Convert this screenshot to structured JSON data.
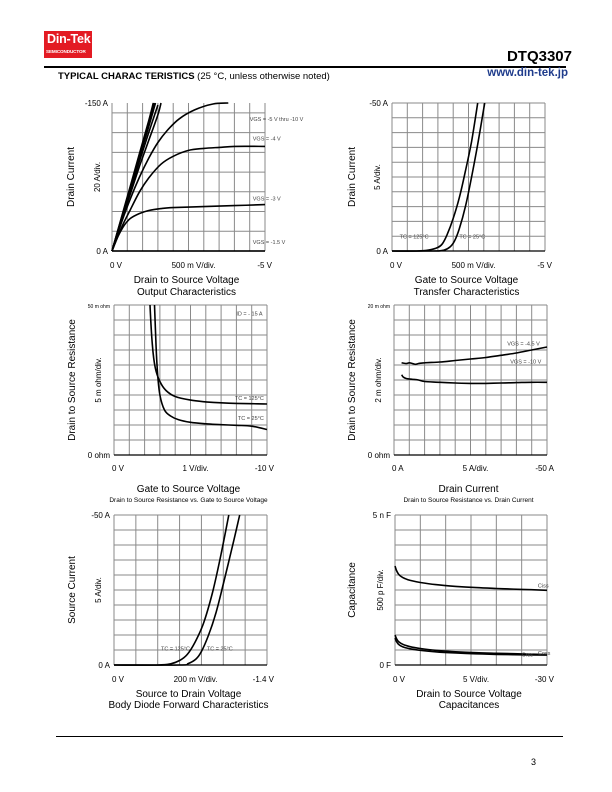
{
  "header": {
    "logo_brand": "Din-Tek",
    "logo_sub": "SEMICONDUCTOR",
    "part_number": "DTQ3307",
    "url": "www.din-tek.jp",
    "section_title": "TYPICAL CHARAC TERISTICS",
    "section_note": "(25 °C, unless otherwise noted)",
    "colors": {
      "logo_bg": "#e31b23",
      "url": "#1f3c8c"
    }
  },
  "footer": {
    "page_number": "3"
  },
  "chart_data": [
    {
      "id": "output",
      "type": "line",
      "title": "Output Characteristics",
      "xlabel": "Drain to Source Voltage",
      "ylabel": "Drain Current",
      "xscale_label": "500 m V/div.",
      "yscale_label": "20 A/div.",
      "x_start_label": "0 V",
      "x_end_label": "-5 V",
      "y_top_label": "-150 A",
      "y_bottom_label": "0 A",
      "xlim": [
        0,
        -5
      ],
      "ylim": [
        0,
        -150
      ],
      "x_divisions": 10,
      "y_divisions": 7.5,
      "grid": true,
      "annotations": [
        {
          "text": "VGS = -5 V thru -10 V",
          "x": -4.5,
          "y": -132
        },
        {
          "text": "VGS = -4 V",
          "x": -4.6,
          "y": -112
        },
        {
          "text": "VGS = -3 V",
          "x": -4.6,
          "y": -51
        },
        {
          "text": "VGS = -1.5 V",
          "x": -4.6,
          "y": -7
        }
      ],
      "series": [
        {
          "name": "VGS = -10 V",
          "x": [
            0,
            -0.3,
            -0.6,
            -0.9,
            -1.2,
            -1.35
          ],
          "y": [
            0,
            -33,
            -66,
            -99,
            -132,
            -150
          ]
        },
        {
          "name": "VGS = -8 V",
          "x": [
            0,
            -0.3,
            -0.6,
            -0.9,
            -1.2,
            -1.38
          ],
          "y": [
            0,
            -32,
            -64,
            -97,
            -130,
            -150
          ]
        },
        {
          "name": "VGS = -7 V",
          "x": [
            0,
            -0.3,
            -0.6,
            -0.9,
            -1.2,
            -1.42
          ],
          "y": [
            0,
            -32,
            -63,
            -95,
            -126,
            -150
          ]
        },
        {
          "name": "VGS = -6 V",
          "x": [
            0,
            -0.3,
            -0.6,
            -0.9,
            -1.2,
            -1.5
          ],
          "y": [
            0,
            -31,
            -61,
            -91,
            -120,
            -148
          ]
        },
        {
          "name": "VGS = -5.5 V",
          "x": [
            0,
            -0.3,
            -0.6,
            -0.9,
            -1.2,
            -1.5,
            -1.6
          ],
          "y": [
            0,
            -30,
            -58,
            -86,
            -112,
            -138,
            -150
          ]
        },
        {
          "name": "VGS = -5 V",
          "x": [
            0,
            -0.3,
            -0.6,
            -0.9,
            -1.2,
            -1.5,
            -1.8,
            -2.2,
            -2.7,
            -3.3,
            -3.8
          ],
          "y": [
            0,
            -28,
            -53,
            -75,
            -94,
            -110,
            -122,
            -134,
            -143,
            -149,
            -150
          ]
        },
        {
          "name": "VGS = -4 V",
          "x": [
            0,
            -0.3,
            -0.6,
            -0.9,
            -1.2,
            -1.6,
            -2.0,
            -2.5,
            -3.0,
            -3.5,
            -4.0,
            -5.0
          ],
          "y": [
            0,
            -23,
            -42,
            -60,
            -74,
            -88,
            -96,
            -102,
            -104,
            -105,
            -106,
            -106
          ]
        },
        {
          "name": "VGS = -3 V",
          "x": [
            0,
            -0.2,
            -0.4,
            -0.6,
            -0.9,
            -1.2,
            -1.6,
            -2.0,
            -3.0,
            -4.0,
            -5.0
          ],
          "y": [
            0,
            -15,
            -26,
            -33,
            -38,
            -41,
            -43,
            -44,
            -45,
            -46,
            -47
          ]
        },
        {
          "name": "VGS = -1.5 V",
          "x": [
            0,
            -5.0
          ],
          "y": [
            0,
            0
          ]
        }
      ]
    },
    {
      "id": "transfer",
      "type": "line",
      "title": "Transfer Characteristics",
      "xlabel": "Gate to Source Voltage",
      "ylabel": "Drain Current",
      "xscale_label": "500 m V/div.",
      "yscale_label": "5 A/div.",
      "x_start_label": "0 V",
      "x_end_label": "-5 V",
      "y_top_label": "-50 A",
      "y_bottom_label": "0 A",
      "xlim": [
        0,
        -5
      ],
      "ylim": [
        0,
        -50
      ],
      "x_divisions": 10,
      "y_divisions": 10,
      "grid": true,
      "annotations": [
        {
          "text": "TC = 125°C",
          "x": -0.25,
          "y": -4.2
        },
        {
          "text": "TC = 25°C",
          "x": -2.2,
          "y": -4.2
        }
      ],
      "series": [
        {
          "name": "TC = 125°C",
          "x": [
            0,
            -0.8,
            -1.2,
            -1.5,
            -1.65,
            -1.8,
            -2.0,
            -2.2,
            -2.4,
            -2.6,
            -2.8
          ],
          "y": [
            0,
            0,
            -0.3,
            -1.2,
            -2.5,
            -5.5,
            -11,
            -18,
            -27,
            -37,
            -50
          ]
        },
        {
          "name": "TC = 25°C",
          "x": [
            0,
            -1.3,
            -1.7,
            -1.9,
            -2.05,
            -2.2,
            -2.4,
            -2.6,
            -2.8,
            -3.03
          ],
          "y": [
            0,
            0,
            -0.3,
            -1.4,
            -3.5,
            -7.5,
            -15,
            -25,
            -36,
            -50
          ]
        }
      ]
    },
    {
      "id": "rds-vs-vgs",
      "type": "line",
      "title": "Drain to Source Resistance vs. Gate to Source Voltage",
      "xlabel": "Gate to Source Voltage",
      "ylabel": "Drain to Source Resistance",
      "xscale_label": "1 V/div.",
      "yscale_label": "5 m ohm/div.",
      "x_start_label": "0 V",
      "x_end_label": "-10 V",
      "y_top_label": "50 m ohm",
      "y_bottom_label": "0 ohm",
      "xlim": [
        0,
        -10
      ],
      "ylim": [
        0,
        50
      ],
      "x_divisions": 10,
      "y_divisions": 10,
      "grid": true,
      "annotations": [
        {
          "text": "ID = - 15 A",
          "x": -8.0,
          "y": 46.5
        },
        {
          "text": "TC = 125°C",
          "x": -7.9,
          "y": 18.3
        },
        {
          "text": "TC = 25°C",
          "x": -8.1,
          "y": 11.7
        }
      ],
      "series": [
        {
          "name": "TC = 125°C",
          "x": [
            -2.35,
            -2.5,
            -2.7,
            -3.0,
            -3.4,
            -4.0,
            -5.0,
            -6.0,
            -7.0,
            -8.0,
            -9.0,
            -10.0
          ],
          "y": [
            50,
            37,
            29,
            24.5,
            21.5,
            19.5,
            18.3,
            17.7,
            17.4,
            17.2,
            17.1,
            17.0
          ]
        },
        {
          "name": "TC = 25°C",
          "x": [
            -2.65,
            -2.75,
            -2.85,
            -3.0,
            -3.3,
            -3.7,
            -4.2,
            -5.0,
            -6.0,
            -7.0,
            -8.0,
            -9.0,
            -10.0
          ],
          "y": [
            50,
            36,
            27,
            20,
            15,
            13,
            11.8,
            10.9,
            10.4,
            10.1,
            9.9,
            9.6,
            8.5
          ]
        }
      ]
    },
    {
      "id": "rds-vs-id",
      "type": "line",
      "title": "Drain to Source Resistance vs. Drain Current",
      "xlabel": "Drain Current",
      "ylabel": "Drain to Source Resistance",
      "xscale_label": "5 A/div.",
      "yscale_label": "2 m ohm/div.",
      "x_start_label": "0 A",
      "x_end_label": "-50 A",
      "y_top_label": "20 m ohm",
      "y_bottom_label": "0 ohm",
      "xlim": [
        0,
        -50
      ],
      "ylim": [
        0,
        20
      ],
      "x_divisions": 10,
      "y_divisions": 10,
      "grid": true,
      "annotations": [
        {
          "text": "VGS = -4.5 V",
          "x": -37,
          "y": 14.6
        },
        {
          "text": "VGS = -10 V",
          "x": -38,
          "y": 12.2
        }
      ],
      "series": [
        {
          "name": "VGS = -4.5 V",
          "x": [
            -2.5,
            -4,
            -5,
            -6,
            -7,
            -8,
            -10,
            -15,
            -20,
            -25,
            -30,
            -35,
            -40,
            -45,
            -50
          ],
          "y": [
            12.3,
            12.2,
            12.3,
            12.2,
            12.1,
            12.2,
            12.3,
            12.4,
            12.6,
            12.8,
            13.0,
            13.3,
            13.6,
            14.0,
            14.4
          ]
        },
        {
          "name": "VGS = -10 V",
          "x": [
            -2.5,
            -3,
            -4,
            -6,
            -8,
            -10,
            -15,
            -20,
            -25,
            -30,
            -35,
            -40,
            -45,
            -50
          ],
          "y": [
            10.7,
            10.4,
            10.2,
            10.1,
            10.0,
            9.8,
            9.7,
            9.6,
            9.55,
            9.55,
            9.6,
            9.65,
            9.7,
            9.7
          ]
        }
      ]
    },
    {
      "id": "body-diode",
      "type": "line",
      "title": "Body Diode Forward Characteristics",
      "xlabel": "Source to Drain Voltage",
      "ylabel": "Source Current",
      "xscale_label": "200 m V/div.",
      "yscale_label": "5 A/div.",
      "x_start_label": "0 V",
      "x_end_label": "-1.4 V",
      "y_top_label": "-50 A",
      "y_bottom_label": "0 A",
      "xlim": [
        0,
        -1.4
      ],
      "ylim": [
        0,
        -50
      ],
      "x_divisions": 7,
      "y_divisions": 10,
      "grid": true,
      "annotations": [
        {
          "text": "TC = 125°C",
          "x": -0.43,
          "y": -4.8
        },
        {
          "text": "TC = 25°C",
          "x": -0.85,
          "y": -4.8
        }
      ],
      "series": [
        {
          "name": "TC = 125°C",
          "x": [
            0,
            -0.4,
            -0.52,
            -0.6,
            -0.67,
            -0.74,
            -0.82,
            -0.9,
            -0.98,
            -1.05
          ],
          "y": [
            0,
            0,
            -0.4,
            -1.5,
            -3.5,
            -7.5,
            -14,
            -24,
            -37,
            -50
          ]
        },
        {
          "name": "TC = 25°C",
          "x": [
            0,
            -0.6,
            -0.68,
            -0.75,
            -0.8,
            -0.86,
            -0.93,
            -1.0,
            -1.08,
            -1.15
          ],
          "y": [
            0,
            0,
            -0.5,
            -2.0,
            -4.5,
            -9.5,
            -17,
            -27,
            -39,
            -50
          ]
        }
      ]
    },
    {
      "id": "capacitance",
      "type": "line",
      "title": "Capacitances",
      "xlabel": "Drain to Source Voltage",
      "ylabel": "Capacitance",
      "xscale_label": "5 V/div.",
      "yscale_label": "500 p F/div.",
      "x_start_label": "0 V",
      "x_end_label": "-30 V",
      "y_top_label": "5 n F",
      "y_bottom_label": "0 F",
      "xlim": [
        0,
        -30
      ],
      "ylim": [
        0,
        5000
      ],
      "x_divisions": 6,
      "y_divisions": 10,
      "grid": true,
      "annotations": [
        {
          "text": "Ciss",
          "x": -28.2,
          "y": 2580
        },
        {
          "text": "Crss",
          "x": -25.0,
          "y": 290
        },
        {
          "text": "Coss",
          "x": -28.2,
          "y": 330
        }
      ],
      "series": [
        {
          "name": "Ciss",
          "x": [
            0,
            -0.3,
            -0.7,
            -1.2,
            -2,
            -3,
            -5,
            -8,
            -12,
            -16,
            -20,
            -25,
            -30
          ],
          "y": [
            3300,
            3150,
            3030,
            2950,
            2880,
            2820,
            2750,
            2680,
            2620,
            2580,
            2550,
            2520,
            2490
          ]
        },
        {
          "name": "Coss",
          "x": [
            0,
            -0.3,
            -0.7,
            -1.2,
            -2,
            -3,
            -5,
            -8,
            -12,
            -16,
            -20,
            -25,
            -30
          ],
          "y": [
            1000,
            880,
            780,
            720,
            660,
            610,
            550,
            490,
            440,
            410,
            390,
            370,
            350
          ]
        },
        {
          "name": "Crss",
          "x": [
            0,
            -0.3,
            -0.7,
            -1.2,
            -2,
            -3,
            -5,
            -8,
            -12,
            -16,
            -20,
            -25,
            -30
          ],
          "y": [
            900,
            780,
            690,
            630,
            580,
            540,
            490,
            440,
            400,
            375,
            355,
            340,
            330
          ]
        }
      ]
    }
  ]
}
